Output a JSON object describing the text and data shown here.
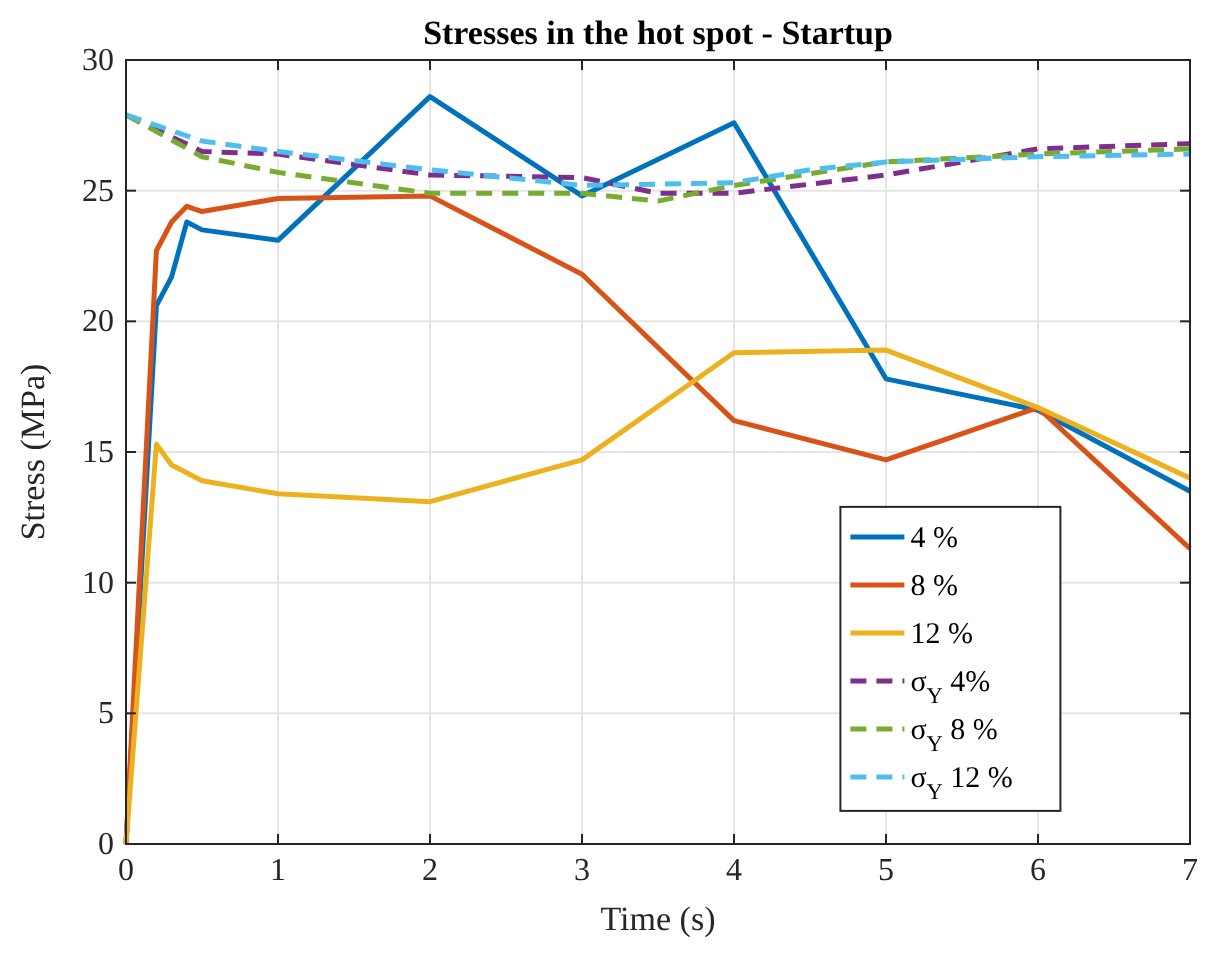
{
  "chart_data": {
    "type": "line",
    "title": "Stresses in the hot spot - Startup",
    "xlabel": "Time (s)",
    "ylabel": "Stress (MPa)",
    "xlim": [
      0,
      7
    ],
    "xticks": [
      0,
      1,
      2,
      3,
      4,
      5,
      6,
      7
    ],
    "ylim": [
      0,
      30
    ],
    "yticks": [
      0,
      5,
      10,
      15,
      20,
      25,
      30
    ],
    "grid": true,
    "legend": "right",
    "series": [
      {
        "name": "4 %",
        "color": "#0072bd",
        "line_style": "solid",
        "x": [
          0,
          0.2,
          0.3,
          0.4,
          0.5,
          1,
          2,
          3,
          4,
          5,
          6,
          7
        ],
        "values": [
          0,
          20.6,
          21.7,
          23.8,
          23.5,
          23.1,
          28.6,
          24.8,
          27.6,
          17.8,
          16.6,
          13.5
        ]
      },
      {
        "name": "8 %",
        "color": "#d95319",
        "line_style": "solid",
        "x": [
          0,
          0.2,
          0.3,
          0.4,
          0.5,
          1,
          2,
          3,
          4,
          5,
          6,
          7
        ],
        "values": [
          0,
          22.7,
          23.8,
          24.4,
          24.2,
          24.7,
          24.8,
          21.8,
          16.2,
          14.7,
          16.7,
          11.3
        ]
      },
      {
        "name": "12 %",
        "color": "#edb120",
        "line_style": "solid",
        "x": [
          0,
          0.2,
          0.3,
          0.5,
          1,
          2,
          3,
          4,
          5,
          6,
          7
        ],
        "values": [
          0,
          15.3,
          14.5,
          13.9,
          13.4,
          13.1,
          14.7,
          18.8,
          18.9,
          16.7,
          14
        ]
      },
      {
        "name": "σ$_{Y}$ 4%",
        "color": "#7e2f8e",
        "line_style": "dashed",
        "x": [
          0,
          0.5,
          1,
          2,
          3,
          3.5,
          4,
          5,
          6,
          7
        ],
        "values": [
          27.9,
          26.5,
          26.4,
          25.6,
          25.5,
          24.9,
          24.9,
          25.6,
          26.6,
          26.8
        ]
      },
      {
        "name": "σ$_{Y}$ 8 %",
        "color": "#77ac30",
        "line_style": "dashed",
        "x": [
          0,
          0.5,
          1,
          2,
          3,
          3.5,
          4,
          5,
          6,
          7
        ],
        "values": [
          27.9,
          26.3,
          25.7,
          24.9,
          24.9,
          24.6,
          25.2,
          26.1,
          26.4,
          26.6
        ]
      },
      {
        "name": "σ$_{Y}$ 12 %",
        "color": "#4dbeee",
        "line_style": "dashed",
        "x": [
          0,
          0.5,
          1,
          2,
          3,
          4,
          4.5,
          5,
          6,
          7
        ],
        "values": [
          27.9,
          26.9,
          26.5,
          25.8,
          25.2,
          25.3,
          25.8,
          26.1,
          26.3,
          26.4
        ]
      }
    ]
  }
}
